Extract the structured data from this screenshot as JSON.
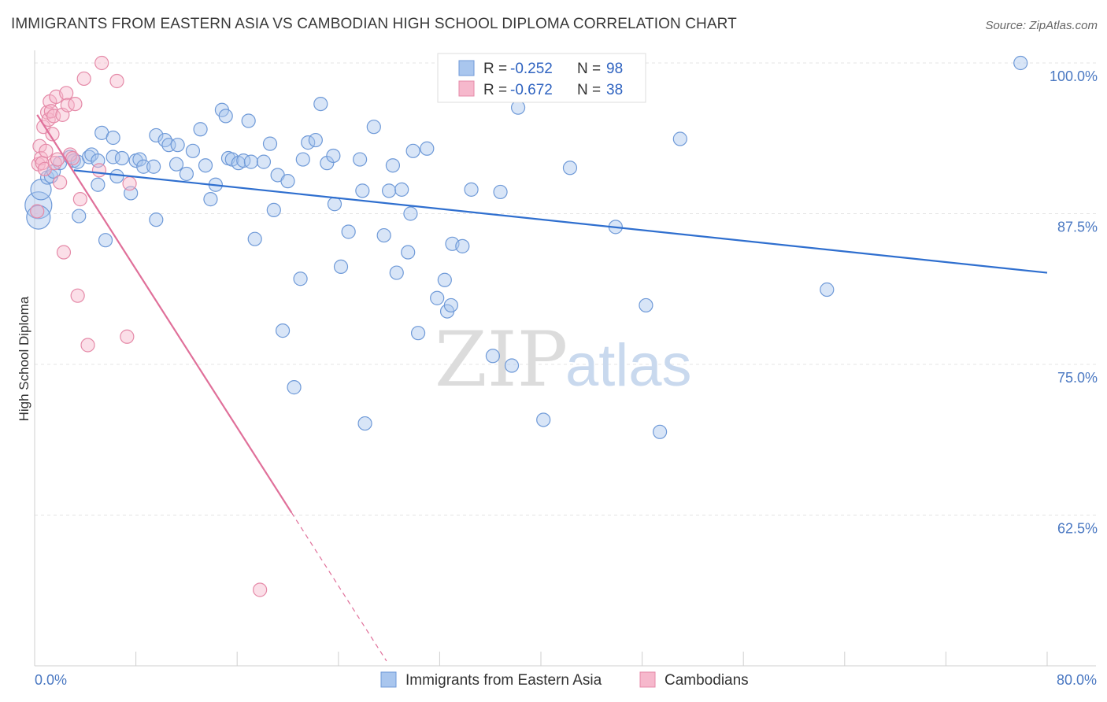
{
  "title": "IMMIGRANTS FROM EASTERN ASIA VS CAMBODIAN HIGH SCHOOL DIPLOMA CORRELATION CHART",
  "source": "Source: ZipAtlas.com",
  "watermark": {
    "zip": "ZIP",
    "atlas": "atlas"
  },
  "legend": {
    "r_label": "R =",
    "n_label": "N =",
    "items": [
      {
        "r": "-0.252",
        "n": "98",
        "color": "#a9c6ee",
        "stroke": "#6f9ad8"
      },
      {
        "r": "-0.672",
        "n": "38",
        "color": "#f6b8cc",
        "stroke": "#e58aa8"
      }
    ]
  },
  "bottom_legend": [
    "Immigrants from Eastern Asia",
    "Cambodians"
  ],
  "chart_data": {
    "type": "scatter",
    "xlabel": "",
    "ylabel": "High School Diploma",
    "xlim": [
      0,
      80
    ],
    "ylim": [
      50,
      100.5
    ],
    "x_tick_labels": [
      {
        "value": 0,
        "label": "0.0%"
      },
      {
        "value": 80,
        "label": "80.0%"
      }
    ],
    "y_ticks": [
      {
        "value": 100,
        "label": "100.0%"
      },
      {
        "value": 87.5,
        "label": "87.5%"
      },
      {
        "value": 75,
        "label": "75.0%"
      },
      {
        "value": 62.5,
        "label": "62.5%"
      }
    ],
    "grid": true,
    "series": [
      {
        "name": "Immigrants from Eastern Asia",
        "color": "#a9c6ee",
        "stroke": "#6f9ad8",
        "points": [
          [
            0.3,
            88.2
          ],
          [
            0.3,
            87.2
          ],
          [
            0.5,
            89.5
          ],
          [
            1.0,
            90.5
          ],
          [
            1.3,
            90.6
          ],
          [
            1.5,
            91.0
          ],
          [
            2.0,
            91.7
          ],
          [
            2.8,
            92.2
          ],
          [
            3.1,
            91.9
          ],
          [
            3.4,
            91.8
          ],
          [
            3.5,
            87.3
          ],
          [
            4.3,
            92.2
          ],
          [
            4.5,
            92.4
          ],
          [
            5.0,
            91.9
          ],
          [
            5.0,
            89.9
          ],
          [
            5.3,
            94.2
          ],
          [
            5.6,
            85.3
          ],
          [
            6.2,
            93.8
          ],
          [
            6.2,
            92.2
          ],
          [
            6.5,
            90.6
          ],
          [
            6.9,
            92.1
          ],
          [
            7.6,
            89.2
          ],
          [
            8.0,
            91.9
          ],
          [
            8.3,
            92.0
          ],
          [
            8.6,
            91.4
          ],
          [
            9.4,
            91.4
          ],
          [
            9.6,
            87.0
          ],
          [
            9.6,
            94.0
          ],
          [
            10.3,
            93.6
          ],
          [
            10.6,
            93.2
          ],
          [
            11.2,
            91.6
          ],
          [
            11.3,
            93.2
          ],
          [
            12.0,
            90.8
          ],
          [
            12.5,
            92.7
          ],
          [
            13.1,
            94.5
          ],
          [
            13.5,
            91.5
          ],
          [
            13.9,
            88.7
          ],
          [
            14.3,
            89.9
          ],
          [
            14.8,
            96.1
          ],
          [
            15.1,
            95.6
          ],
          [
            15.3,
            92.1
          ],
          [
            15.6,
            92.0
          ],
          [
            16.1,
            91.7
          ],
          [
            16.5,
            91.9
          ],
          [
            16.9,
            95.2
          ],
          [
            17.1,
            91.8
          ],
          [
            17.4,
            85.4
          ],
          [
            18.1,
            91.8
          ],
          [
            18.6,
            93.3
          ],
          [
            18.9,
            87.8
          ],
          [
            19.2,
            90.7
          ],
          [
            19.6,
            77.8
          ],
          [
            20.0,
            90.2
          ],
          [
            20.5,
            73.1
          ],
          [
            21.0,
            82.1
          ],
          [
            21.2,
            92.0
          ],
          [
            21.6,
            93.4
          ],
          [
            22.2,
            93.6
          ],
          [
            22.6,
            96.6
          ],
          [
            23.1,
            91.7
          ],
          [
            23.6,
            92.3
          ],
          [
            23.7,
            88.3
          ],
          [
            24.2,
            83.1
          ],
          [
            24.8,
            86.0
          ],
          [
            25.7,
            92.0
          ],
          [
            25.9,
            89.4
          ],
          [
            26.1,
            70.1
          ],
          [
            26.8,
            94.7
          ],
          [
            27.6,
            85.7
          ],
          [
            28.0,
            89.4
          ],
          [
            28.3,
            91.5
          ],
          [
            28.6,
            82.6
          ],
          [
            29.0,
            89.5
          ],
          [
            29.5,
            84.3
          ],
          [
            29.7,
            87.5
          ],
          [
            29.9,
            92.7
          ],
          [
            30.3,
            77.6
          ],
          [
            31.0,
            92.9
          ],
          [
            31.8,
            80.5
          ],
          [
            32.4,
            82.0
          ],
          [
            32.6,
            79.4
          ],
          [
            32.9,
            79.9
          ],
          [
            33.0,
            85.0
          ],
          [
            33.8,
            84.8
          ],
          [
            34.5,
            89.5
          ],
          [
            36.2,
            75.7
          ],
          [
            36.8,
            89.3
          ],
          [
            37.1,
            100.0
          ],
          [
            37.7,
            74.9
          ],
          [
            38.2,
            96.3
          ],
          [
            40.2,
            70.4
          ],
          [
            42.3,
            91.3
          ],
          [
            43.0,
            100.0
          ],
          [
            45.9,
            86.4
          ],
          [
            48.3,
            79.9
          ],
          [
            49.4,
            69.4
          ],
          [
            51.0,
            93.7
          ],
          [
            62.6,
            81.2
          ],
          [
            77.9,
            100.0
          ]
        ],
        "trend": {
          "x": [
            3.1,
            80
          ],
          "y": [
            91.1,
            82.6
          ]
        }
      },
      {
        "name": "Cambodians",
        "color": "#f6b8cc",
        "stroke": "#e58aa8",
        "points": [
          [
            0.2,
            87.7
          ],
          [
            0.3,
            91.6
          ],
          [
            0.4,
            93.1
          ],
          [
            0.5,
            92.1
          ],
          [
            0.6,
            91.7
          ],
          [
            0.7,
            94.7
          ],
          [
            0.8,
            91.2
          ],
          [
            0.9,
            92.7
          ],
          [
            1.0,
            95.9
          ],
          [
            1.1,
            95.3
          ],
          [
            1.2,
            96.8
          ],
          [
            1.3,
            96.0
          ],
          [
            1.4,
            94.1
          ],
          [
            1.5,
            95.6
          ],
          [
            1.6,
            91.7
          ],
          [
            1.7,
            97.2
          ],
          [
            1.8,
            92.0
          ],
          [
            2.0,
            90.1
          ],
          [
            2.2,
            95.7
          ],
          [
            2.3,
            84.3
          ],
          [
            2.5,
            97.5
          ],
          [
            2.6,
            96.5
          ],
          [
            2.8,
            92.4
          ],
          [
            3.0,
            92.1
          ],
          [
            3.2,
            96.6
          ],
          [
            3.4,
            80.7
          ],
          [
            3.6,
            88.7
          ],
          [
            3.9,
            98.7
          ],
          [
            4.2,
            76.6
          ],
          [
            5.1,
            91.1
          ],
          [
            5.3,
            100.0
          ],
          [
            6.5,
            98.5
          ],
          [
            7.3,
            77.3
          ],
          [
            7.5,
            90.0
          ],
          [
            17.8,
            56.3
          ]
        ],
        "trend": {
          "x": [
            0.2,
            20.3
          ],
          "y": [
            95.7,
            62.7
          ]
        },
        "trend_extension": {
          "x": [
            20.3,
            27.8
          ],
          "y": [
            62.7,
            50.4
          ]
        }
      }
    ]
  }
}
